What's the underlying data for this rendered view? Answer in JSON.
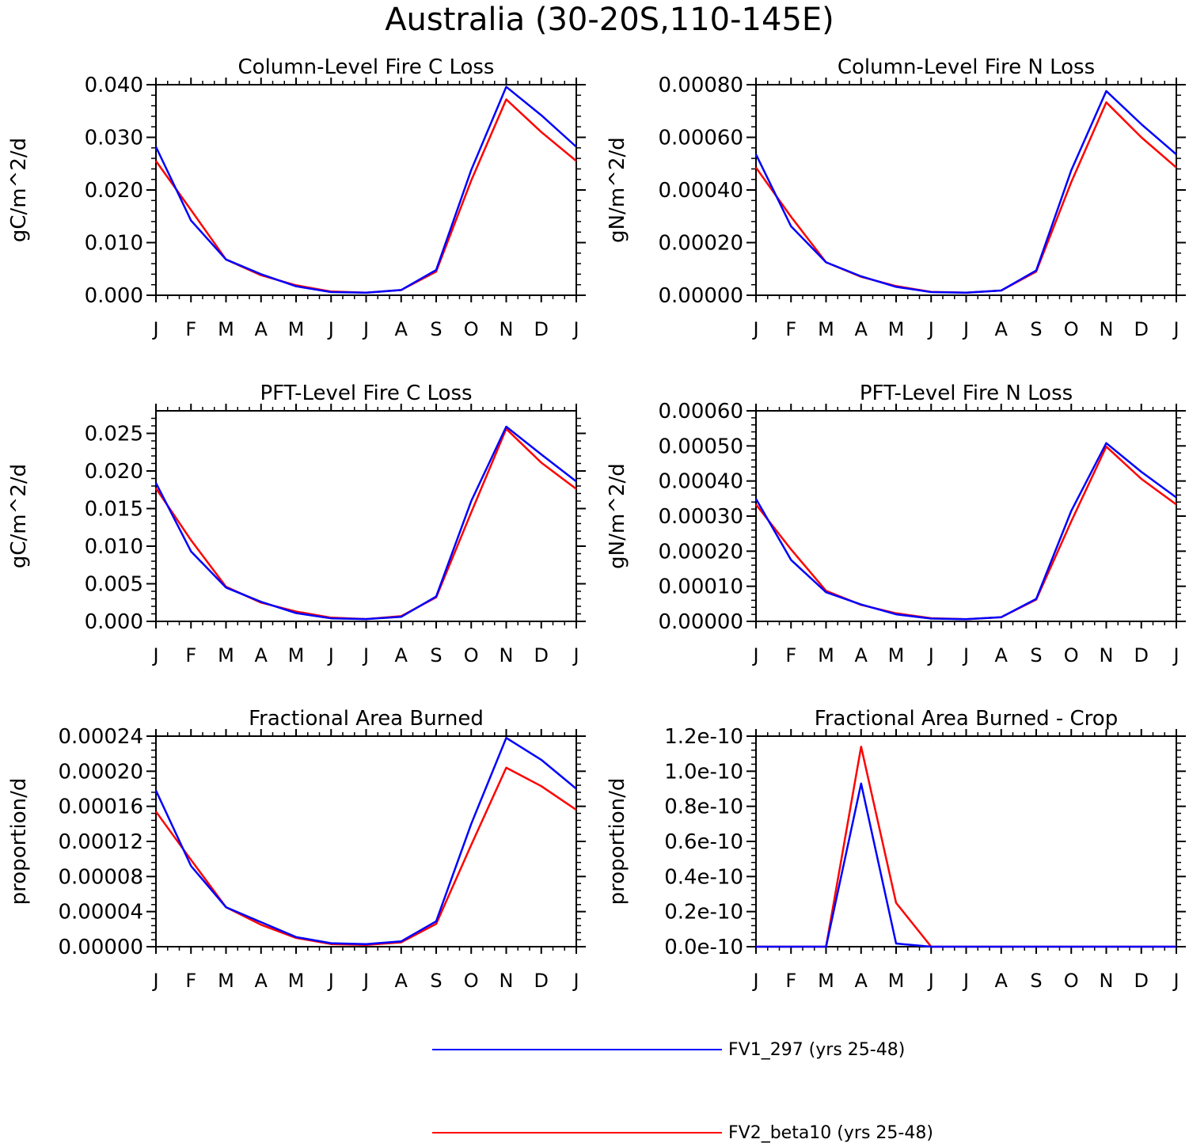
{
  "title": "Australia (30-20S,110-145E)",
  "colors": {
    "series1": "#0000ff",
    "series2": "#ff0000",
    "axis": "#000000"
  },
  "legend": [
    {
      "label": "FV1_297 (yrs 25-48)",
      "color": "#0000ff"
    },
    {
      "label": "FV2_beta10 (yrs 25-48)",
      "color": "#ff0000"
    }
  ],
  "chart_data": [
    {
      "type": "line",
      "title": "Column-Level Fire C Loss",
      "ylabel": "gC/m^2/d",
      "categories": [
        "J",
        "F",
        "M",
        "A",
        "M",
        "J",
        "J",
        "A",
        "S",
        "O",
        "N",
        "D",
        "J"
      ],
      "ylim": [
        0,
        0.04
      ],
      "yticks": [
        0,
        0.01,
        0.02,
        0.03,
        0.04
      ],
      "yticklabels": [
        "0.000",
        "0.010",
        "0.020",
        "0.030",
        "0.040"
      ],
      "series": [
        {
          "name": "FV1_297 (yrs 25-48)",
          "values": [
            0.0282,
            0.0142,
            0.0068,
            0.004,
            0.0017,
            0.0006,
            0.0005,
            0.001,
            0.0048,
            0.0238,
            0.0396,
            0.0342,
            0.0282
          ]
        },
        {
          "name": "FV2_beta10 (yrs 25-48)",
          "values": [
            0.0255,
            0.0162,
            0.0068,
            0.0038,
            0.0019,
            0.0007,
            0.0005,
            0.001,
            0.0045,
            0.0218,
            0.0372,
            0.031,
            0.0255
          ]
        }
      ]
    },
    {
      "type": "line",
      "title": "Column-Level Fire N Loss",
      "ylabel": "gN/m^2/d",
      "categories": [
        "J",
        "F",
        "M",
        "A",
        "M",
        "J",
        "J",
        "A",
        "S",
        "O",
        "N",
        "D",
        "J"
      ],
      "ylim": [
        0,
        0.0008
      ],
      "yticks": [
        0,
        0.0002,
        0.0004,
        0.0006,
        0.0008
      ],
      "yticklabels": [
        "0.00000",
        "0.00020",
        "0.00040",
        "0.00060",
        "0.00080"
      ],
      "series": [
        {
          "name": "FV1_297 (yrs 25-48)",
          "values": [
            0.000535,
            0.000262,
            0.000125,
            7.2e-05,
            3.2e-05,
            1.2e-05,
            1e-05,
            1.8e-05,
            9.4e-05,
            0.000475,
            0.000776,
            0.00065,
            0.000535
          ]
        },
        {
          "name": "FV2_beta10 (yrs 25-48)",
          "values": [
            0.000485,
            0.000298,
            0.000125,
            7e-05,
            3.5e-05,
            1.3e-05,
            1e-05,
            1.8e-05,
            9e-05,
            0.00043,
            0.000733,
            0.0006,
            0.000485
          ]
        }
      ]
    },
    {
      "type": "line",
      "title": "PFT-Level Fire C Loss",
      "ylabel": "gC/m^2/d",
      "categories": [
        "J",
        "F",
        "M",
        "A",
        "M",
        "J",
        "J",
        "A",
        "S",
        "O",
        "N",
        "D",
        "J"
      ],
      "ylim": [
        0,
        0.028
      ],
      "yticks": [
        0,
        0.005,
        0.01,
        0.015,
        0.02,
        0.025
      ],
      "yticklabels": [
        "0.000",
        "0.005",
        "0.010",
        "0.015",
        "0.020",
        "0.025"
      ],
      "series": [
        {
          "name": "FV1_297 (yrs 25-48)",
          "values": [
            0.0184,
            0.0093,
            0.0045,
            0.0026,
            0.0011,
            0.0004,
            0.0003,
            0.0006,
            0.0033,
            0.016,
            0.0259,
            0.0222,
            0.0186
          ]
        },
        {
          "name": "FV2_beta10 (yrs 25-48)",
          "values": [
            0.0177,
            0.0108,
            0.0046,
            0.0025,
            0.0013,
            0.0005,
            0.0003,
            0.0007,
            0.0032,
            0.0145,
            0.0256,
            0.0211,
            0.0176
          ]
        }
      ]
    },
    {
      "type": "line",
      "title": "PFT-Level Fire N Loss",
      "ylabel": "gN/m^2/d",
      "categories": [
        "J",
        "F",
        "M",
        "A",
        "M",
        "J",
        "J",
        "A",
        "S",
        "O",
        "N",
        "D",
        "J"
      ],
      "ylim": [
        0,
        0.0006
      ],
      "yticks": [
        0,
        0.0001,
        0.0002,
        0.0003,
        0.0004,
        0.0005,
        0.0006
      ],
      "yticklabels": [
        "0.00000",
        "0.00010",
        "0.00020",
        "0.00030",
        "0.00040",
        "0.00050",
        "0.00060"
      ],
      "series": [
        {
          "name": "FV1_297 (yrs 25-48)",
          "values": [
            0.000349,
            0.000175,
            8.3e-05,
            4.8e-05,
            2e-05,
            8e-06,
            6e-06,
            1.2e-05,
            6.4e-05,
            0.000315,
            0.000508,
            0.000426,
            0.000353
          ]
        },
        {
          "name": "FV2_beta10 (yrs 25-48)",
          "values": [
            0.000333,
            0.000205,
            8.7e-05,
            4.7e-05,
            2.3e-05,
            9e-06,
            6e-06,
            1.2e-05,
            6.2e-05,
            0.000285,
            0.000498,
            0.000406,
            0.000333
          ]
        }
      ]
    },
    {
      "type": "line",
      "title": "Fractional Area Burned",
      "ylabel": "proportion/d",
      "categories": [
        "J",
        "F",
        "M",
        "A",
        "M",
        "J",
        "J",
        "A",
        "S",
        "O",
        "N",
        "D",
        "J"
      ],
      "ylim": [
        0,
        0.00024
      ],
      "yticks": [
        0,
        4e-05,
        8e-05,
        0.00012,
        0.00016,
        0.0002,
        0.00024
      ],
      "yticklabels": [
        "0.00000",
        "0.00004",
        "0.00008",
        "0.00012",
        "0.00016",
        "0.00020",
        "0.00024"
      ],
      "series": [
        {
          "name": "FV1_297 (yrs 25-48)",
          "values": [
            0.000178,
            9.2e-05,
            4.5e-05,
            2.8e-05,
            1.1e-05,
            4e-06,
            3e-06,
            6e-06,
            2.9e-05,
            0.00014,
            0.000238,
            0.000213,
            0.00018
          ]
        },
        {
          "name": "FV2_beta10 (yrs 25-48)",
          "values": [
            0.000154,
            9.9e-05,
            4.5e-05,
            2.5e-05,
            1e-05,
            3e-06,
            2e-06,
            5e-06,
            2.6e-05,
            0.000116,
            0.000204,
            0.000183,
            0.000156
          ]
        }
      ]
    },
    {
      "type": "line",
      "title": "Fractional Area Burned - Crop",
      "ylabel": "proportion/d",
      "categories": [
        "J",
        "F",
        "M",
        "A",
        "M",
        "J",
        "J",
        "A",
        "S",
        "O",
        "N",
        "D",
        "J"
      ],
      "ylim": [
        0,
        1.2e-10
      ],
      "yticks": [
        0,
        2e-11,
        4e-11,
        6e-11,
        8e-11,
        1e-10,
        1.2e-10
      ],
      "yticklabels": [
        "0.0e-10",
        "0.2e-10",
        "0.4e-10",
        "0.6e-10",
        "0.8e-10",
        "1.0e-10",
        "1.2e-10"
      ],
      "series": [
        {
          "name": "FV1_297 (yrs 25-48)",
          "values": [
            0,
            0,
            0,
            9.3e-11,
            1.8e-12,
            0,
            0,
            0,
            0,
            0,
            0,
            0,
            0
          ]
        },
        {
          "name": "FV2_beta10 (yrs 25-48)",
          "values": [
            0,
            0,
            0,
            1.14e-10,
            2.5e-11,
            0,
            0,
            0,
            0,
            0,
            0,
            0,
            0
          ]
        }
      ]
    }
  ]
}
